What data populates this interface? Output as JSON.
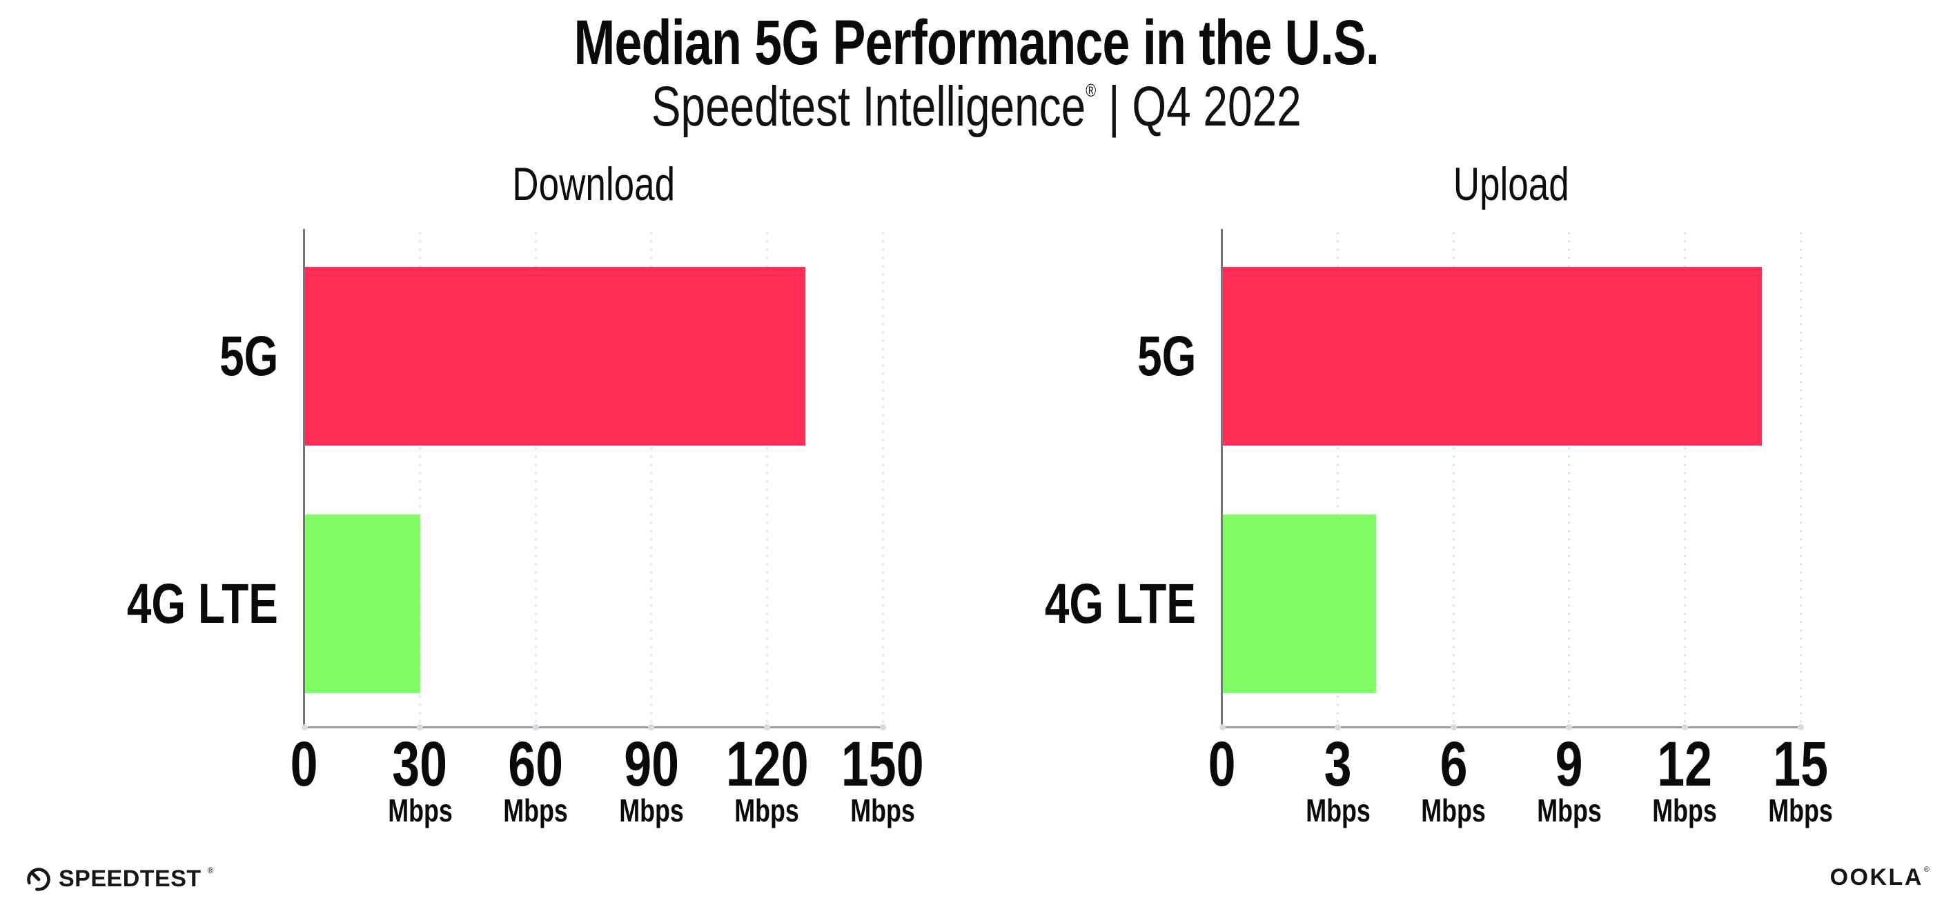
{
  "header": {
    "title": "Median 5G Performance in the U.S.",
    "subtitle_brand": "Speedtest Intelligence",
    "subtitle_reg": "®",
    "subtitle_period": " | Q4 2022"
  },
  "colors": {
    "bar_5g": "#FF2D55",
    "bar_4g_lte": "#7EFD65",
    "grid_dots": "#E2E2EC",
    "axis_bottom": "#9A9AA3",
    "axis_left": "#74747E",
    "text": "#0A0A0A"
  },
  "chart_data": [
    {
      "type": "bar",
      "orientation": "horizontal",
      "title": "Download",
      "categories": [
        "5G",
        "4G LTE"
      ],
      "values": [
        130,
        30
      ],
      "unit": "Mbps",
      "xlim": [
        0,
        150
      ],
      "xticks": [
        0,
        30,
        60,
        90,
        120,
        150
      ],
      "tick_unit_label": "Mbps",
      "bar_colors": [
        "#FF2D55",
        "#7EFD65"
      ],
      "grid": "dotted-vertical",
      "legend": "none"
    },
    {
      "type": "bar",
      "orientation": "horizontal",
      "title": "Upload",
      "categories": [
        "5G",
        "4G LTE"
      ],
      "values": [
        14,
        4
      ],
      "unit": "Mbps",
      "xlim": [
        0,
        15
      ],
      "xticks": [
        0,
        3,
        6,
        9,
        12,
        15
      ],
      "tick_unit_label": "Mbps",
      "bar_colors": [
        "#FF2D55",
        "#7EFD65"
      ],
      "grid": "dotted-vertical",
      "legend": "none"
    }
  ],
  "footer": {
    "speedtest_label": "SPEEDTEST",
    "speedtest_reg": "®",
    "ookla_label": "OOKLA",
    "ookla_reg": "®"
  }
}
